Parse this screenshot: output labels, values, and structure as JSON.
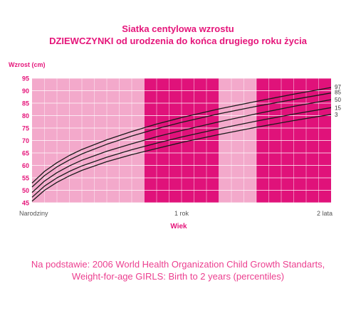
{
  "header": {
    "title_line1": "Siatka centylowa wzrostu",
    "title_line2": "DZIEWCZYNKI od urodzenia do końca drugiego roku życia"
  },
  "footer": {
    "line1": "Na podstawie: 2006 World Health Organization Child Growth Standarts,",
    "line2": "Weight-for-age GIRLS: Birth to 2 years (percentiles)"
  },
  "colors": {
    "light_band": "#f3a9cb",
    "dark_band": "#e0127a",
    "accent_text": "#e5157a",
    "curve": "#1a1a1a"
  },
  "chart_data": {
    "type": "line",
    "ylabel": "Wzrost (cm)",
    "xlabel": "Wiek",
    "ylim": [
      45,
      95
    ],
    "xlim": [
      0,
      24
    ],
    "y_ticks": [
      "45",
      "50",
      "55",
      "60",
      "65",
      "70",
      "75",
      "80",
      "85",
      "90",
      "95"
    ],
    "x_tick_labels": [
      {
        "x": 0,
        "label": "Narodziny"
      },
      {
        "x": 12,
        "label": "1 rok"
      },
      {
        "x": 24,
        "label": "2 lata"
      }
    ],
    "x_months": [
      0,
      1,
      2,
      3,
      4,
      6,
      8,
      10,
      12,
      15,
      18,
      21,
      24
    ],
    "series": [
      {
        "name": "97",
        "values": [
          52.9,
          57.6,
          61.1,
          64.0,
          66.4,
          70.3,
          73.6,
          76.6,
          79.2,
          82.7,
          85.7,
          88.6,
          91.3
        ]
      },
      {
        "name": "85",
        "values": [
          51.3,
          55.9,
          59.4,
          62.2,
          64.6,
          68.5,
          71.8,
          74.7,
          77.3,
          80.7,
          83.7,
          86.5,
          89.1
        ]
      },
      {
        "name": "50",
        "values": [
          49.1,
          53.7,
          57.1,
          59.8,
          62.1,
          65.7,
          68.7,
          71.5,
          74.0,
          77.5,
          80.7,
          83.7,
          86.4
        ]
      },
      {
        "name": "15",
        "values": [
          47.2,
          51.7,
          55.0,
          57.6,
          59.8,
          63.3,
          66.3,
          68.9,
          71.4,
          74.7,
          77.8,
          80.6,
          83.2
        ]
      },
      {
        "name": "3",
        "values": [
          45.6,
          50.0,
          53.2,
          55.8,
          58.0,
          61.5,
          64.3,
          66.8,
          69.2,
          72.4,
          75.3,
          78.0,
          80.5
        ]
      }
    ],
    "bands": [
      {
        "from": 0,
        "to": 9,
        "shade": "light"
      },
      {
        "from": 9,
        "to": 15,
        "shade": "dark"
      },
      {
        "from": 15,
        "to": 18,
        "shade": "light"
      },
      {
        "from": 18,
        "to": 24,
        "shade": "dark"
      }
    ],
    "grid": true
  }
}
